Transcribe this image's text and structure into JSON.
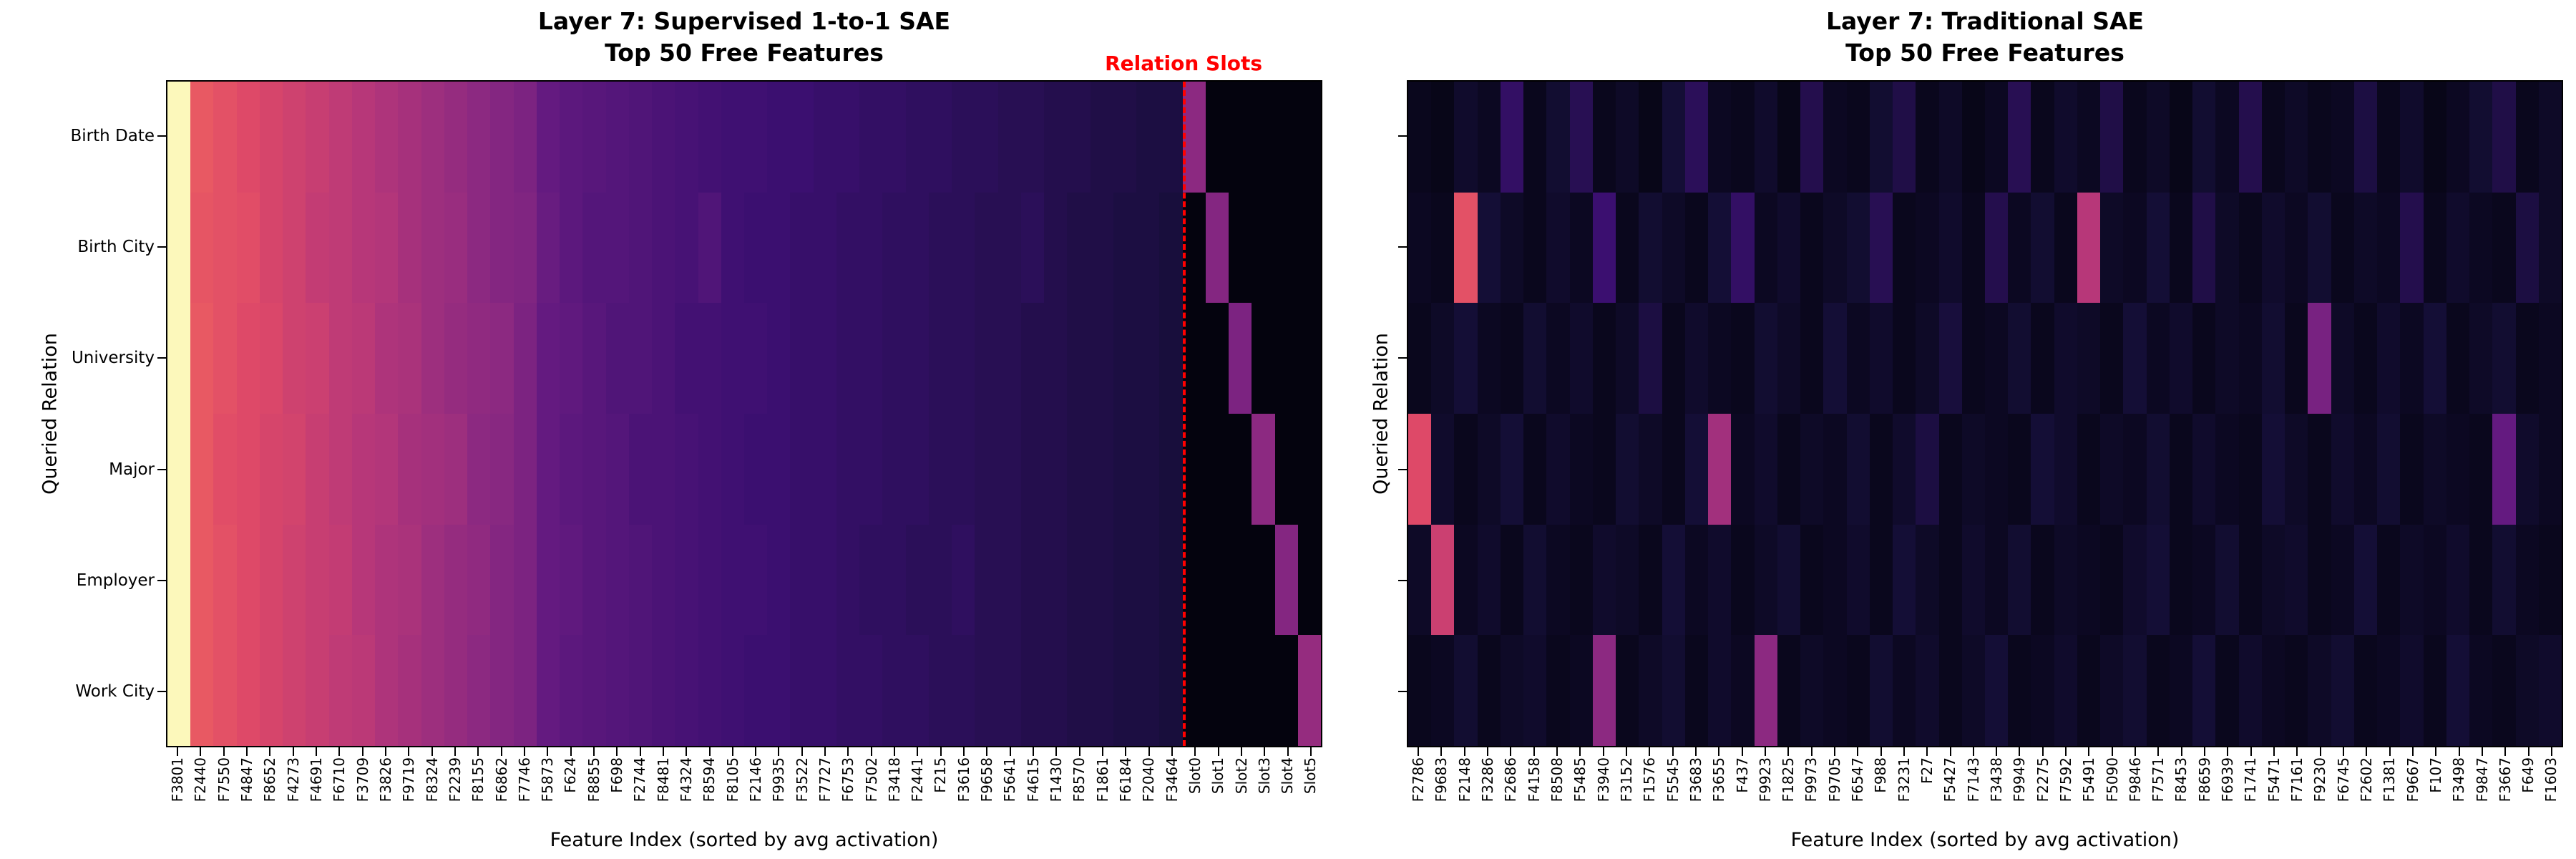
{
  "figure": {
    "background": "#ffffff"
  },
  "chart_data": [
    {
      "type": "heatmap",
      "title_line1": "Layer 7: Supervised 1-to-1 SAE",
      "title_line2": "Top 50 Free Features",
      "xlabel": "Feature Index (sorted by avg activation)",
      "ylabel": "Queried Relation",
      "colormap": "magma",
      "value_range": [
        0,
        1
      ],
      "grid": false,
      "y_tick_labels_visible": true,
      "rows": [
        "Birth Date",
        "Birth City",
        "University",
        "Major",
        "Employer",
        "Work City"
      ],
      "columns": [
        "F3801",
        "F2440",
        "F7550",
        "F4847",
        "F8652",
        "F4273",
        "F4691",
        "F6710",
        "F3709",
        "F3826",
        "F9719",
        "F8324",
        "F2239",
        "F8155",
        "F6862",
        "F7746",
        "F5873",
        "F624",
        "F8855",
        "F698",
        "F2744",
        "F8481",
        "F4324",
        "F8594",
        "F8105",
        "F2146",
        "F9935",
        "F3522",
        "F7727",
        "F6753",
        "F7502",
        "F3418",
        "F2441",
        "F215",
        "F3616",
        "F9658",
        "F5641",
        "F4615",
        "F1430",
        "F8570",
        "F1861",
        "F6184",
        "F2040",
        "F3464",
        "Slot0",
        "Slot1",
        "Slot2",
        "Slot3",
        "Slot4",
        "Slot5"
      ],
      "values": [
        [
          0.99,
          0.64,
          0.62,
          0.6,
          0.58,
          0.56,
          0.54,
          0.52,
          0.5,
          0.48,
          0.46,
          0.44,
          0.42,
          0.4,
          0.38,
          0.36,
          0.3,
          0.28,
          0.27,
          0.26,
          0.25,
          0.24,
          0.23,
          0.22,
          0.21,
          0.21,
          0.2,
          0.2,
          0.19,
          0.19,
          0.18,
          0.18,
          0.17,
          0.17,
          0.16,
          0.16,
          0.15,
          0.15,
          0.14,
          0.14,
          0.13,
          0.13,
          0.12,
          0.12,
          0.4,
          0.02,
          0.02,
          0.02,
          0.02,
          0.02
        ],
        [
          0.99,
          0.63,
          0.62,
          0.61,
          0.58,
          0.56,
          0.53,
          0.52,
          0.5,
          0.49,
          0.46,
          0.44,
          0.43,
          0.4,
          0.38,
          0.37,
          0.31,
          0.28,
          0.26,
          0.26,
          0.25,
          0.24,
          0.23,
          0.25,
          0.21,
          0.2,
          0.2,
          0.19,
          0.19,
          0.18,
          0.18,
          0.17,
          0.17,
          0.16,
          0.16,
          0.15,
          0.15,
          0.16,
          0.14,
          0.13,
          0.13,
          0.12,
          0.12,
          0.11,
          0.02,
          0.38,
          0.02,
          0.02,
          0.02,
          0.02
        ],
        [
          0.99,
          0.64,
          0.62,
          0.6,
          0.59,
          0.56,
          0.55,
          0.52,
          0.51,
          0.48,
          0.47,
          0.44,
          0.42,
          0.41,
          0.4,
          0.36,
          0.3,
          0.29,
          0.27,
          0.25,
          0.25,
          0.24,
          0.22,
          0.22,
          0.21,
          0.21,
          0.2,
          0.19,
          0.19,
          0.18,
          0.18,
          0.17,
          0.17,
          0.16,
          0.16,
          0.15,
          0.15,
          0.14,
          0.14,
          0.13,
          0.13,
          0.12,
          0.12,
          0.11,
          0.02,
          0.02,
          0.36,
          0.02,
          0.02,
          0.02
        ],
        [
          0.99,
          0.64,
          0.61,
          0.6,
          0.58,
          0.57,
          0.54,
          0.52,
          0.5,
          0.49,
          0.46,
          0.45,
          0.44,
          0.4,
          0.39,
          0.36,
          0.3,
          0.28,
          0.27,
          0.26,
          0.24,
          0.24,
          0.23,
          0.22,
          0.21,
          0.2,
          0.2,
          0.19,
          0.19,
          0.18,
          0.18,
          0.17,
          0.17,
          0.16,
          0.16,
          0.15,
          0.15,
          0.14,
          0.14,
          0.13,
          0.13,
          0.12,
          0.12,
          0.11,
          0.02,
          0.02,
          0.02,
          0.4,
          0.02,
          0.02
        ],
        [
          0.99,
          0.64,
          0.62,
          0.6,
          0.58,
          0.56,
          0.54,
          0.53,
          0.5,
          0.48,
          0.47,
          0.44,
          0.42,
          0.41,
          0.38,
          0.36,
          0.3,
          0.29,
          0.27,
          0.26,
          0.25,
          0.24,
          0.23,
          0.22,
          0.21,
          0.21,
          0.2,
          0.19,
          0.19,
          0.18,
          0.17,
          0.17,
          0.16,
          0.16,
          0.17,
          0.15,
          0.15,
          0.14,
          0.14,
          0.13,
          0.13,
          0.12,
          0.12,
          0.11,
          0.02,
          0.02,
          0.02,
          0.02,
          0.38,
          0.02
        ],
        [
          0.99,
          0.64,
          0.62,
          0.6,
          0.58,
          0.56,
          0.54,
          0.52,
          0.51,
          0.48,
          0.46,
          0.44,
          0.42,
          0.4,
          0.38,
          0.36,
          0.3,
          0.28,
          0.27,
          0.26,
          0.25,
          0.24,
          0.23,
          0.22,
          0.21,
          0.2,
          0.2,
          0.19,
          0.19,
          0.18,
          0.18,
          0.17,
          0.17,
          0.16,
          0.16,
          0.15,
          0.15,
          0.14,
          0.14,
          0.13,
          0.13,
          0.12,
          0.12,
          0.11,
          0.02,
          0.02,
          0.02,
          0.02,
          0.02,
          0.42
        ]
      ],
      "annotation": {
        "text": "Relation Slots",
        "color": "#ff0000"
      },
      "divider": {
        "style": "dashed",
        "color": "#ff0000",
        "before_column": "Slot0"
      }
    },
    {
      "type": "heatmap",
      "title_line1": "Layer 7: Traditional SAE",
      "title_line2": "Top 50 Free Features",
      "xlabel": "Feature Index (sorted by avg activation)",
      "ylabel": "Queried Relation",
      "colormap": "magma",
      "value_range": [
        0,
        1
      ],
      "grid": false,
      "y_tick_labels_visible": false,
      "rows": [
        "Birth Date",
        "Birth City",
        "University",
        "Major",
        "Employer",
        "Work City"
      ],
      "columns": [
        "F2786",
        "F9683",
        "F2148",
        "F3286",
        "F2686",
        "F4158",
        "F8508",
        "F5485",
        "F3940",
        "F3152",
        "F1576",
        "F5545",
        "F3683",
        "F3655",
        "F437",
        "F9923",
        "F1825",
        "F9973",
        "F9705",
        "F6547",
        "F988",
        "F3231",
        "F27",
        "F5427",
        "F7143",
        "F3438",
        "F9949",
        "F2275",
        "F7592",
        "F5491",
        "F5090",
        "F9846",
        "F7571",
        "F8453",
        "F8659",
        "F6939",
        "F1741",
        "F5471",
        "F7161",
        "F9230",
        "F6745",
        "F2602",
        "F1381",
        "F9667",
        "F107",
        "F3498",
        "F9847",
        "F3667",
        "F649",
        "F1603"
      ],
      "values": [
        [
          0.05,
          0.04,
          0.08,
          0.06,
          0.18,
          0.05,
          0.09,
          0.15,
          0.05,
          0.07,
          0.04,
          0.1,
          0.16,
          0.06,
          0.05,
          0.08,
          0.04,
          0.14,
          0.06,
          0.05,
          0.09,
          0.13,
          0.05,
          0.07,
          0.04,
          0.06,
          0.15,
          0.05,
          0.08,
          0.06,
          0.13,
          0.05,
          0.07,
          0.04,
          0.09,
          0.06,
          0.14,
          0.05,
          0.07,
          0.05,
          0.06,
          0.12,
          0.05,
          0.08,
          0.04,
          0.06,
          0.09,
          0.13,
          0.05,
          0.07
        ],
        [
          0.06,
          0.05,
          0.62,
          0.1,
          0.07,
          0.05,
          0.08,
          0.06,
          0.2,
          0.05,
          0.09,
          0.07,
          0.05,
          0.1,
          0.18,
          0.06,
          0.08,
          0.05,
          0.07,
          0.09,
          0.15,
          0.05,
          0.06,
          0.08,
          0.05,
          0.14,
          0.06,
          0.09,
          0.05,
          0.5,
          0.07,
          0.06,
          0.1,
          0.05,
          0.13,
          0.07,
          0.05,
          0.08,
          0.06,
          0.09,
          0.05,
          0.07,
          0.06,
          0.14,
          0.05,
          0.08,
          0.06,
          0.05,
          0.12,
          0.07
        ],
        [
          0.05,
          0.07,
          0.1,
          0.06,
          0.05,
          0.09,
          0.06,
          0.08,
          0.05,
          0.07,
          0.12,
          0.05,
          0.08,
          0.06,
          0.05,
          0.09,
          0.07,
          0.05,
          0.1,
          0.06,
          0.08,
          0.05,
          0.07,
          0.11,
          0.05,
          0.06,
          0.09,
          0.05,
          0.08,
          0.07,
          0.05,
          0.1,
          0.06,
          0.08,
          0.05,
          0.07,
          0.06,
          0.09,
          0.05,
          0.35,
          0.07,
          0.05,
          0.08,
          0.06,
          0.1,
          0.05,
          0.07,
          0.09,
          0.05,
          0.06
        ],
        [
          0.6,
          0.08,
          0.05,
          0.07,
          0.1,
          0.05,
          0.08,
          0.06,
          0.05,
          0.09,
          0.07,
          0.05,
          0.1,
          0.45,
          0.06,
          0.08,
          0.05,
          0.07,
          0.06,
          0.09,
          0.05,
          0.08,
          0.12,
          0.05,
          0.07,
          0.06,
          0.05,
          0.1,
          0.08,
          0.05,
          0.07,
          0.06,
          0.09,
          0.05,
          0.08,
          0.06,
          0.05,
          0.1,
          0.07,
          0.05,
          0.08,
          0.06,
          0.09,
          0.05,
          0.07,
          0.06,
          0.05,
          0.3,
          0.08,
          0.06
        ],
        [
          0.07,
          0.55,
          0.06,
          0.08,
          0.05,
          0.09,
          0.06,
          0.05,
          0.08,
          0.07,
          0.05,
          0.1,
          0.06,
          0.08,
          0.05,
          0.07,
          0.09,
          0.05,
          0.06,
          0.08,
          0.05,
          0.1,
          0.07,
          0.05,
          0.08,
          0.06,
          0.09,
          0.05,
          0.07,
          0.06,
          0.05,
          0.08,
          0.1,
          0.05,
          0.06,
          0.09,
          0.05,
          0.07,
          0.08,
          0.05,
          0.06,
          0.1,
          0.05,
          0.07,
          0.06,
          0.08,
          0.05,
          0.09,
          0.06,
          0.05
        ],
        [
          0.05,
          0.06,
          0.09,
          0.05,
          0.07,
          0.08,
          0.05,
          0.06,
          0.4,
          0.05,
          0.07,
          0.09,
          0.05,
          0.08,
          0.06,
          0.4,
          0.05,
          0.07,
          0.06,
          0.05,
          0.09,
          0.06,
          0.08,
          0.05,
          0.07,
          0.1,
          0.05,
          0.06,
          0.08,
          0.05,
          0.07,
          0.09,
          0.05,
          0.06,
          0.1,
          0.05,
          0.08,
          0.06,
          0.05,
          0.07,
          0.09,
          0.05,
          0.06,
          0.08,
          0.05,
          0.1,
          0.06,
          0.05,
          0.07,
          0.08
        ]
      ]
    }
  ]
}
